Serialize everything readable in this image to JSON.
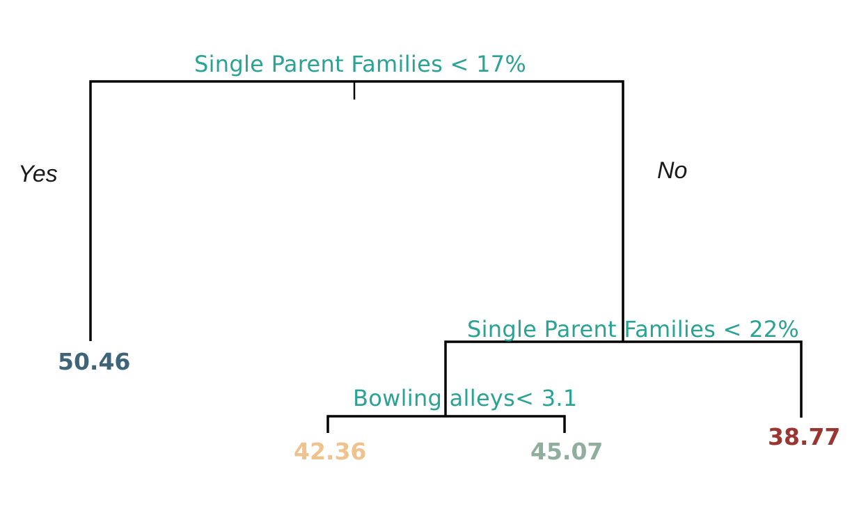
{
  "root_split": {
    "label": "Single Parent Families < 17%"
  },
  "branches": {
    "yes": "Yes",
    "no": "No"
  },
  "second_split": {
    "label": "Single Parent Families < 22%"
  },
  "third_split": {
    "label": "Bowling alleys< 3.1"
  },
  "leaves": {
    "left": {
      "value": "50.46",
      "color": "#3d6577"
    },
    "mid_left": {
      "value": "42.36",
      "color": "#efc38f"
    },
    "mid_right": {
      "value": "45.07",
      "color": "#8fae9e"
    },
    "right": {
      "value": "38.77",
      "color": "#9a3632"
    }
  },
  "colors": {
    "split_text": "#2aa394",
    "branch_line": "#000000"
  }
}
